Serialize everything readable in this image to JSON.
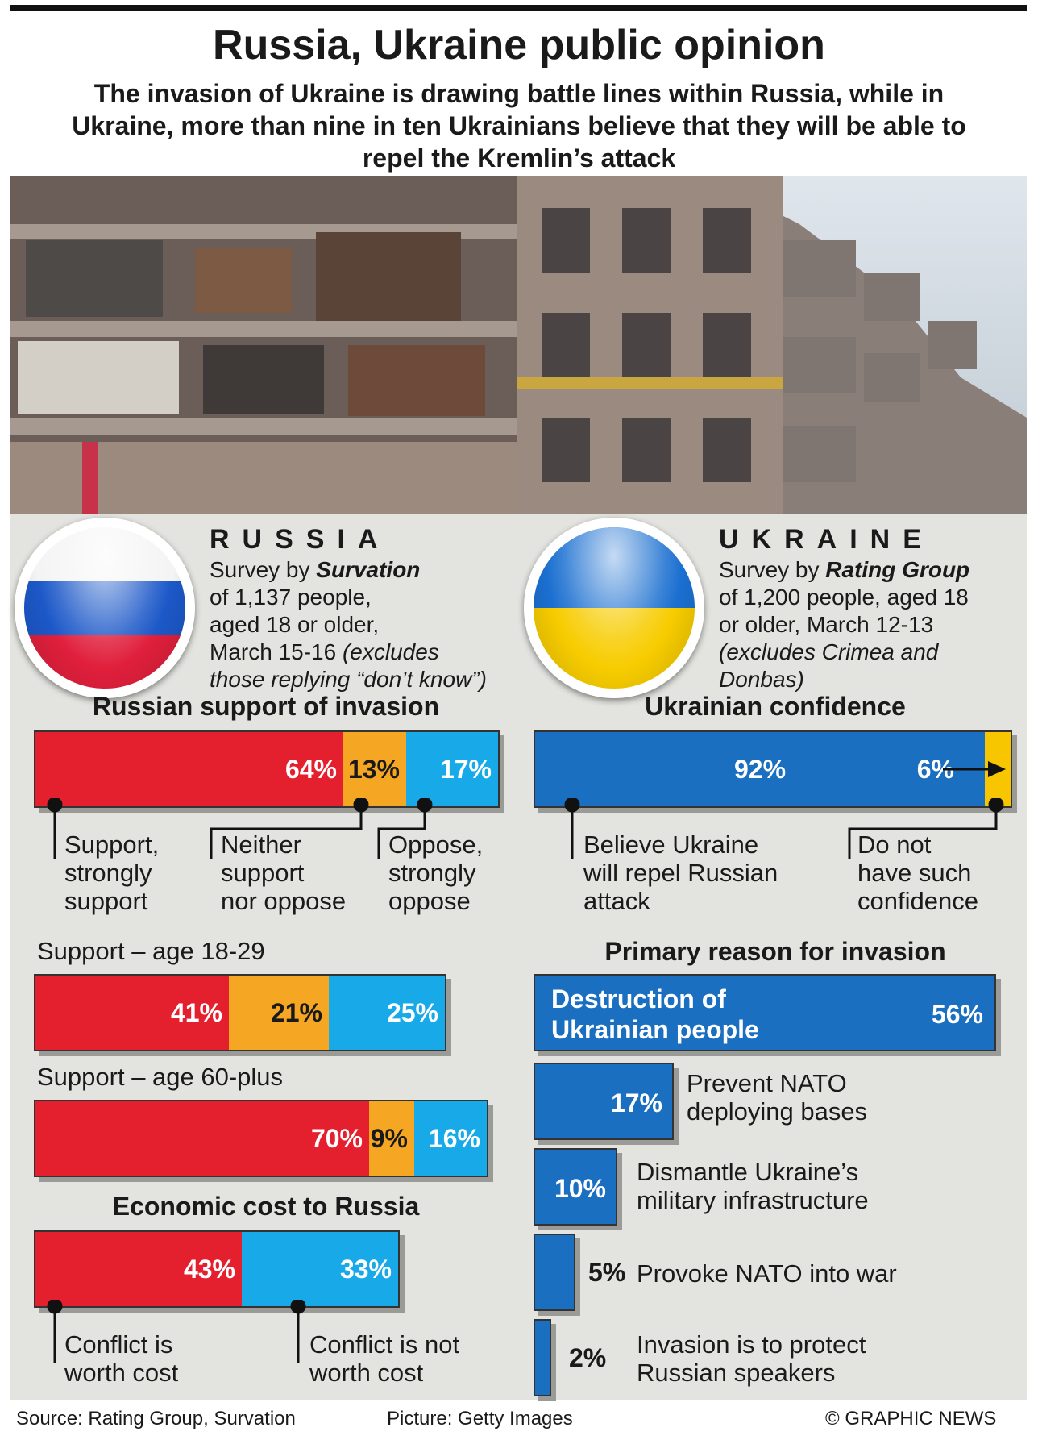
{
  "title": "Russia, Ukraine public opinion",
  "subtitle": "The invasion of Ukraine is drawing battle lines within Russia, while in Ukraine, more than nine in ten Ukrainians believe that they will be able to repel the Kremlin’s attack",
  "colors": {
    "red": "#e5202e",
    "orange": "#f5a623",
    "light_blue": "#18a9e8",
    "dark_blue": "#1a6fc0",
    "yellow": "#f7c600"
  },
  "russia": {
    "country": "RUSSIA",
    "survey_prefix": "Survey by ",
    "survey_org": "Survation",
    "survey_line2": "of 1,137 people,",
    "survey_line3": "aged 18 or older,",
    "survey_line4": "March 15-16 ",
    "survey_note1": "(excludes",
    "survey_note2": "those replying “don’t know”)"
  },
  "ukraine": {
    "country": "UKRAINE",
    "survey_prefix": "Survey by ",
    "survey_org": "Rating Group",
    "survey_line2": "of 1,200 people, aged 18",
    "survey_line3": "or older, March 12-13",
    "survey_note1": "(excludes Crimea and",
    "survey_note2": "Donbas)"
  },
  "labels": {
    "support_l1": "Support,",
    "support_l2": "strongly",
    "support_l3": "support",
    "neither_l1": "Neither",
    "neither_l2": "support",
    "neither_l3": "nor oppose",
    "oppose_l1": "Oppose,",
    "oppose_l2": "strongly",
    "oppose_l3": "oppose",
    "believe_l1": "Believe Ukraine",
    "believe_l2": "will repel Russian",
    "believe_l3": "attack",
    "nocon_l1": "Do not",
    "nocon_l2": "have such",
    "nocon_l3": "confidence",
    "worth_l1": "Conflict is",
    "worth_l2": "worth cost",
    "notworth_l1": "Conflict is not",
    "notworth_l2": "worth cost"
  },
  "footer": {
    "source": "Source: Rating Group, Survation",
    "picture": "Picture: Getty Images",
    "credit": "© GRAPHIC NEWS"
  },
  "chart_data": [
    {
      "type": "bar",
      "title": "Russian support of invasion",
      "categories": [
        "Support, strongly support",
        "Neither support nor oppose",
        "Oppose, strongly oppose"
      ],
      "values": [
        64,
        13,
        17
      ],
      "labels": [
        "64%",
        "13%",
        "17%"
      ]
    },
    {
      "type": "bar",
      "title": "Support – age 18-29",
      "values": [
        41,
        21,
        25
      ],
      "labels": [
        "41%",
        "21%",
        "25%"
      ]
    },
    {
      "type": "bar",
      "title": "Support – age 60-plus",
      "values": [
        70,
        9,
        16
      ],
      "labels": [
        "70%",
        "9%",
        "16%"
      ]
    },
    {
      "type": "bar",
      "title": "Economic cost to Russia",
      "categories": [
        "Conflict is worth cost",
        "Conflict is not worth cost"
      ],
      "values": [
        43,
        33
      ],
      "labels": [
        "43%",
        "33%"
      ]
    },
    {
      "type": "bar",
      "title": "Ukrainian confidence",
      "categories": [
        "Believe Ukraine will repel Russian attack",
        "Do not have such confidence"
      ],
      "values": [
        92,
        6
      ],
      "labels": [
        "92%",
        "6%"
      ]
    },
    {
      "type": "bar",
      "title": "Primary reason for invasion",
      "categories": [
        "Destruction of Ukrainian people",
        "Prevent NATO deploying bases",
        "Dismantle Ukraine’s military infrastructure",
        "Provoke NATO into war",
        "Invasion is to protect Russian speakers"
      ],
      "values": [
        56,
        17,
        10,
        5,
        2
      ],
      "labels": [
        "56%",
        "17%",
        "10%",
        "5%",
        "2%"
      ],
      "category_lines": [
        [
          "Destruction of",
          "Ukrainian people"
        ],
        [
          "Prevent NATO",
          "deploying bases"
        ],
        [
          "Dismantle Ukraine’s",
          "military infrastructure"
        ],
        [
          "Provoke NATO into war"
        ],
        [
          "Invasion is to protect",
          "Russian speakers"
        ]
      ]
    }
  ]
}
